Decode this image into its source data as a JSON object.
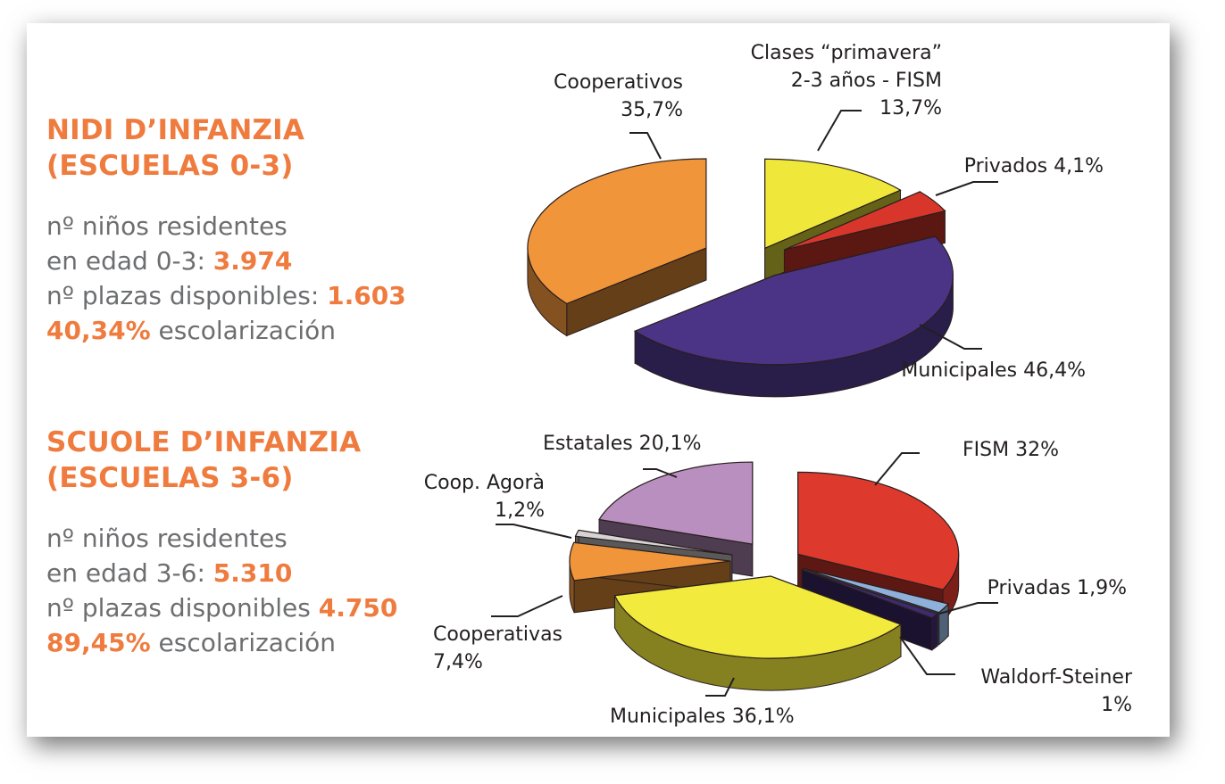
{
  "nidi": {
    "title_line1": "NIDI D’INFANZIA",
    "title_line2": "(ESCUELAS 0-3)",
    "residents_line1": "nº niños residentes",
    "residents_prefix": "en edad 0-3: ",
    "residents_value": "3.974",
    "places_prefix": "nº plazas disponibles: ",
    "places_value": "1.603",
    "rate_value": "40,34%",
    "rate_suffix": " escolarización"
  },
  "scuole": {
    "title_line1": "SCUOLE D’INFANZIA",
    "title_line2": "(ESCUELAS 3-6)",
    "residents_line1": "nº niños residentes",
    "residents_prefix": "en edad 3-6: ",
    "residents_value": "5.310",
    "places_prefix": "nº plazas disponibles ",
    "places_value": "4.750",
    "rate_value": "89,45%",
    "rate_suffix": " escolarización"
  },
  "chart_data": [
    {
      "type": "pie",
      "slices": [
        {
          "label": [
            "Clases “primavera”",
            "2-3 años - FISM",
            "13,7%"
          ],
          "value": 13.7,
          "color": "#efe83a"
        },
        {
          "label": [
            "Privados 4,1%"
          ],
          "value": 4.1,
          "color": "#d9362b"
        },
        {
          "label": [
            "Municipales 46,4%"
          ],
          "value": 46.4,
          "color": "#4b3486"
        },
        {
          "label": [
            "Cooperativos",
            "35,7%"
          ],
          "value": 35.7,
          "color": "#f0953a"
        }
      ]
    },
    {
      "type": "pie",
      "slices": [
        {
          "label": [
            "FISM 32%"
          ],
          "value": 32,
          "color": "#dd3a2d"
        },
        {
          "label": [
            "Privadas 1,9%"
          ],
          "value": 1.9,
          "color": "#8fb0d8"
        },
        {
          "label": [
            "Waldorf-Steiner",
            "1%"
          ],
          "value": 1,
          "color": "#3e2a6e"
        },
        {
          "label": [
            "Municipales 36,1%"
          ],
          "value": 36.1,
          "color": "#f2ea3c"
        },
        {
          "label": [
            "Cooperativas",
            "7,4%"
          ],
          "value": 7.4,
          "color": "#f0953a"
        },
        {
          "label": [
            "Coop. Agorà",
            "1,2%"
          ],
          "value": 1.2,
          "color": "#d6d3d4"
        },
        {
          "label": [
            "Estatales 20,1%"
          ],
          "value": 20.1,
          "color": "#b98fbf"
        }
      ]
    }
  ]
}
